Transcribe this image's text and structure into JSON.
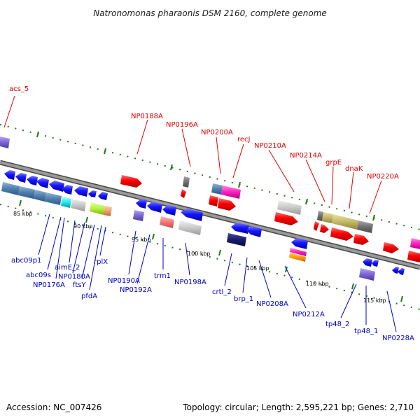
{
  "title": "Natronomonas pharaonis DSM 2160, complete genome",
  "footer": {
    "accession": "Accession: NC_007426",
    "summary": "Topology: circular; Length: 2,595,221 bp; Genes: 2,710"
  },
  "colors": {
    "backbone": "#8c8c8c",
    "top_label": "#e00000",
    "bottom_label": "#0000c8",
    "tick": "#1a7a1a"
  },
  "ticks": [
    "85 kbp",
    "90 kbp",
    "95 kbp",
    "100 kbp",
    "105 kbp",
    "110 kbp",
    "115 kbp"
  ],
  "labels_top": [
    "acs_5",
    "NP0188A",
    "NP0196A",
    "NP0200A",
    "recJ",
    "NP0210A",
    "NP0214A",
    "grpE",
    "dnaK",
    "NP0220A"
  ],
  "labels_bottom": [
    "abc09p1",
    "abc09s",
    "NP0176A",
    "aimE_2",
    "NP0180A",
    "ftsY",
    "rplX",
    "pfdA",
    "NP0190A",
    "NP0192A",
    "trm1",
    "NP0198A",
    "crtI_2",
    "brp_1",
    "NP0208A",
    "NP0212A",
    "tp48_2",
    "tp48_1",
    "NP0228A"
  ]
}
